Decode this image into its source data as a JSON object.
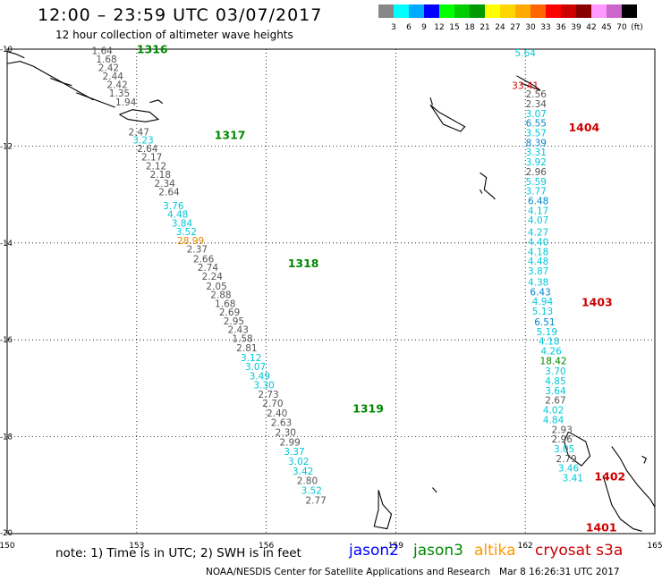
{
  "header": {
    "title": "12:00 – 23:59 UTC 03/07/2017",
    "subtitle": "12 hour collection of altimeter wave heights"
  },
  "legend": {
    "unit_label": "(ft)",
    "bins": [
      {
        "color": "#888888",
        "label": "3"
      },
      {
        "color": "#00ffff",
        "label": "6"
      },
      {
        "color": "#00aaff",
        "label": "9"
      },
      {
        "color": "#0000ff",
        "label": "12"
      },
      {
        "color": "#00ff00",
        "label": "15"
      },
      {
        "color": "#00cc00",
        "label": "18"
      },
      {
        "color": "#009900",
        "label": "21"
      },
      {
        "color": "#ffff00",
        "label": "24"
      },
      {
        "color": "#ffd700",
        "label": "27"
      },
      {
        "color": "#ffaa00",
        "label": "30"
      },
      {
        "color": "#ff6600",
        "label": "33"
      },
      {
        "color": "#ff0000",
        "label": "36"
      },
      {
        "color": "#cc0000",
        "label": "39"
      },
      {
        "color": "#880000",
        "label": "42"
      },
      {
        "color": "#ff99ff",
        "label": "45"
      },
      {
        "color": "#cc66cc",
        "label": "70"
      },
      {
        "color": "#000000",
        "label": ""
      }
    ]
  },
  "map": {
    "lon_range": [
      150,
      165
    ],
    "lat_range": [
      -20,
      -10
    ],
    "lon_ticks": [
      "150",
      "153",
      "156",
      "159",
      "162",
      "165"
    ],
    "lat_ticks": [
      "-10",
      "-12",
      "-14",
      "-16",
      "-18",
      "-20"
    ],
    "colors": {
      "gray": "#555555",
      "cyan": "#00c8d8",
      "blue": "#0088cc",
      "green": "#008800",
      "orange": "#e08800",
      "red": "#cc0000",
      "coast": "#000000"
    },
    "passes": [
      {
        "label": "1316",
        "lon": 153.0,
        "lat": -10.08,
        "color": "green"
      },
      {
        "label": "1317",
        "lon": 154.8,
        "lat": -11.85,
        "color": "green"
      },
      {
        "label": "1318",
        "lon": 156.5,
        "lat": -14.5,
        "color": "green"
      },
      {
        "label": "1319",
        "lon": 158.0,
        "lat": -17.5,
        "color": "green"
      },
      {
        "label": "1404",
        "lon": 163.0,
        "lat": -11.7,
        "color": "red"
      },
      {
        "label": "1403",
        "lon": 163.3,
        "lat": -15.3,
        "color": "red"
      },
      {
        "label": "1402",
        "lon": 163.6,
        "lat": -18.9,
        "color": "red"
      },
      {
        "label": "1401",
        "lon": 163.4,
        "lat": -19.95,
        "color": "red"
      }
    ],
    "tracks": [
      {
        "name": "west",
        "points": [
          {
            "v": "1.64",
            "lon": 152.2,
            "lat": -10.1,
            "c": "gray"
          },
          {
            "v": "1.68",
            "lon": 152.3,
            "lat": -10.28,
            "c": "gray"
          },
          {
            "v": "2.42",
            "lon": 152.35,
            "lat": -10.45,
            "c": "gray"
          },
          {
            "v": "2.44",
            "lon": 152.45,
            "lat": -10.63,
            "c": "gray"
          },
          {
            "v": "2.42",
            "lon": 152.55,
            "lat": -10.8,
            "c": "gray"
          },
          {
            "v": "1.35",
            "lon": 152.6,
            "lat": -10.98,
            "c": "gray"
          },
          {
            "v": "1.94",
            "lon": 152.75,
            "lat": -11.16,
            "c": "gray"
          },
          {
            "v": "2.47",
            "lon": 153.05,
            "lat": -11.78,
            "c": "gray"
          },
          {
            "v": "3.23",
            "lon": 153.15,
            "lat": -11.95,
            "c": "cyan"
          },
          {
            "v": "2.64",
            "lon": 153.25,
            "lat": -12.12,
            "c": "gray"
          },
          {
            "v": "2.17",
            "lon": 153.35,
            "lat": -12.3,
            "c": "gray"
          },
          {
            "v": "2.12",
            "lon": 153.45,
            "lat": -12.48,
            "c": "gray"
          },
          {
            "v": "2.18",
            "lon": 153.55,
            "lat": -12.66,
            "c": "gray"
          },
          {
            "v": "2.34",
            "lon": 153.65,
            "lat": -12.84,
            "c": "gray"
          },
          {
            "v": "2.64",
            "lon": 153.75,
            "lat": -13.02,
            "c": "gray"
          },
          {
            "v": "3.76",
            "lon": 153.85,
            "lat": -13.3,
            "c": "cyan"
          },
          {
            "v": "4.48",
            "lon": 153.95,
            "lat": -13.48,
            "c": "cyan"
          },
          {
            "v": "3.84",
            "lon": 154.05,
            "lat": -13.66,
            "c": "cyan"
          },
          {
            "v": "3.52",
            "lon": 154.15,
            "lat": -13.84,
            "c": "cyan"
          },
          {
            "v": "28.99",
            "lon": 154.25,
            "lat": -14.02,
            "c": "orange"
          },
          {
            "v": "2.37",
            "lon": 154.4,
            "lat": -14.2,
            "c": "gray"
          },
          {
            "v": "2.66",
            "lon": 154.55,
            "lat": -14.4,
            "c": "gray"
          },
          {
            "v": "2.74",
            "lon": 154.65,
            "lat": -14.58,
            "c": "gray"
          },
          {
            "v": "2.24",
            "lon": 154.75,
            "lat": -14.76,
            "c": "gray"
          },
          {
            "v": "2.05",
            "lon": 154.85,
            "lat": -14.96,
            "c": "gray"
          },
          {
            "v": "2.88",
            "lon": 154.95,
            "lat": -15.14,
            "c": "gray"
          },
          {
            "v": "1.68",
            "lon": 155.05,
            "lat": -15.32,
            "c": "gray"
          },
          {
            "v": "2.69",
            "lon": 155.15,
            "lat": -15.5,
            "c": "gray"
          },
          {
            "v": "2.95",
            "lon": 155.25,
            "lat": -15.68,
            "c": "gray"
          },
          {
            "v": "2.43",
            "lon": 155.35,
            "lat": -15.86,
            "c": "gray"
          },
          {
            "v": "1.58",
            "lon": 155.45,
            "lat": -16.04,
            "c": "gray"
          },
          {
            "v": "2.81",
            "lon": 155.55,
            "lat": -16.24,
            "c": "gray"
          },
          {
            "v": "3.12",
            "lon": 155.65,
            "lat": -16.44,
            "c": "cyan"
          },
          {
            "v": "3.07",
            "lon": 155.75,
            "lat": -16.62,
            "c": "cyan"
          },
          {
            "v": "3.49",
            "lon": 155.85,
            "lat": -16.82,
            "c": "cyan"
          },
          {
            "v": "3.30",
            "lon": 155.95,
            "lat": -17.0,
            "c": "cyan"
          },
          {
            "v": "2.73",
            "lon": 156.05,
            "lat": -17.2,
            "c": "gray"
          },
          {
            "v": "2.70",
            "lon": 156.15,
            "lat": -17.38,
            "c": "gray"
          },
          {
            "v": "2.40",
            "lon": 156.25,
            "lat": -17.58,
            "c": "gray"
          },
          {
            "v": "2.63",
            "lon": 156.35,
            "lat": -17.78,
            "c": "gray"
          },
          {
            "v": "2.30",
            "lon": 156.45,
            "lat": -17.98,
            "c": "gray"
          },
          {
            "v": "2.99",
            "lon": 156.55,
            "lat": -18.18,
            "c": "gray"
          },
          {
            "v": "3.37",
            "lon": 156.65,
            "lat": -18.38,
            "c": "cyan"
          },
          {
            "v": "3.02",
            "lon": 156.75,
            "lat": -18.58,
            "c": "cyan"
          },
          {
            "v": "3.42",
            "lon": 156.85,
            "lat": -18.78,
            "c": "cyan"
          },
          {
            "v": "2.80",
            "lon": 156.95,
            "lat": -18.98,
            "c": "gray"
          },
          {
            "v": "3.52",
            "lon": 157.05,
            "lat": -19.18,
            "c": "cyan"
          },
          {
            "v": "2.77",
            "lon": 157.15,
            "lat": -19.38,
            "c": "gray"
          }
        ]
      },
      {
        "name": "east",
        "points": [
          {
            "v": "5.64",
            "lon": 162.0,
            "lat": -10.15,
            "c": "cyan"
          },
          {
            "v": "2.56",
            "lon": 162.25,
            "lat": -11.0,
            "c": "gray"
          },
          {
            "v": "2.34",
            "lon": 162.25,
            "lat": -11.2,
            "c": "gray"
          },
          {
            "v": "3.07",
            "lon": 162.25,
            "lat": -11.4,
            "c": "cyan"
          },
          {
            "v": "6.55",
            "lon": 162.25,
            "lat": -11.6,
            "c": "blue"
          },
          {
            "v": "3.57",
            "lon": 162.25,
            "lat": -11.8,
            "c": "cyan"
          },
          {
            "v": "8.39",
            "lon": 162.25,
            "lat": -12.0,
            "c": "blue"
          },
          {
            "v": "3.31",
            "lon": 162.25,
            "lat": -12.2,
            "c": "cyan"
          },
          {
            "v": "3.92",
            "lon": 162.25,
            "lat": -12.4,
            "c": "cyan"
          },
          {
            "v": "2.96",
            "lon": 162.25,
            "lat": -12.6,
            "c": "gray"
          },
          {
            "v": "5.59",
            "lon": 162.25,
            "lat": -12.8,
            "c": "cyan"
          },
          {
            "v": "3.77",
            "lon": 162.25,
            "lat": -13.0,
            "c": "cyan"
          },
          {
            "v": "6.48",
            "lon": 162.3,
            "lat": -13.2,
            "c": "blue"
          },
          {
            "v": "4.17",
            "lon": 162.3,
            "lat": -13.4,
            "c": "cyan"
          },
          {
            "v": "4.07",
            "lon": 162.3,
            "lat": -13.6,
            "c": "cyan"
          },
          {
            "v": "4.27",
            "lon": 162.3,
            "lat": -13.85,
            "c": "cyan"
          },
          {
            "v": "4.40",
            "lon": 162.3,
            "lat": -14.05,
            "c": "cyan"
          },
          {
            "v": "4.18",
            "lon": 162.3,
            "lat": -14.25,
            "c": "cyan"
          },
          {
            "v": "4.48",
            "lon": 162.3,
            "lat": -14.45,
            "c": "cyan"
          },
          {
            "v": "3.87",
            "lon": 162.3,
            "lat": -14.65,
            "c": "cyan"
          },
          {
            "v": "4.38",
            "lon": 162.3,
            "lat": -14.88,
            "c": "cyan"
          },
          {
            "v": "6.43",
            "lon": 162.35,
            "lat": -15.08,
            "c": "blue"
          },
          {
            "v": "4.94",
            "lon": 162.4,
            "lat": -15.28,
            "c": "cyan"
          },
          {
            "v": "5.13",
            "lon": 162.4,
            "lat": -15.48,
            "c": "cyan"
          },
          {
            "v": "6.51",
            "lon": 162.45,
            "lat": -15.7,
            "c": "blue"
          },
          {
            "v": "5.19",
            "lon": 162.5,
            "lat": -15.9,
            "c": "cyan"
          },
          {
            "v": "4.18",
            "lon": 162.55,
            "lat": -16.1,
            "c": "cyan"
          },
          {
            "v": "4.26",
            "lon": 162.6,
            "lat": -16.3,
            "c": "cyan"
          },
          {
            "v": "18.42",
            "lon": 162.65,
            "lat": -16.5,
            "c": "green"
          },
          {
            "v": "3.70",
            "lon": 162.7,
            "lat": -16.72,
            "c": "cyan"
          },
          {
            "v": "4.85",
            "lon": 162.7,
            "lat": -16.92,
            "c": "cyan"
          },
          {
            "v": "3.64",
            "lon": 162.7,
            "lat": -17.12,
            "c": "cyan"
          },
          {
            "v": "2.67",
            "lon": 162.7,
            "lat": -17.32,
            "c": "gray"
          },
          {
            "v": "4.02",
            "lon": 162.65,
            "lat": -17.52,
            "c": "cyan"
          },
          {
            "v": "4.84",
            "lon": 162.65,
            "lat": -17.72,
            "c": "cyan"
          },
          {
            "v": "2.93",
            "lon": 162.85,
            "lat": -17.92,
            "c": "gray"
          },
          {
            "v": "2.96",
            "lon": 162.85,
            "lat": -18.12,
            "c": "gray"
          },
          {
            "v": "3.05",
            "lon": 162.9,
            "lat": -18.32,
            "c": "cyan"
          },
          {
            "v": "2.79",
            "lon": 162.95,
            "lat": -18.52,
            "c": "gray"
          },
          {
            "v": "3.46",
            "lon": 163.0,
            "lat": -18.72,
            "c": "cyan"
          },
          {
            "v": "3.41",
            "lon": 163.1,
            "lat": -18.92,
            "c": "cyan"
          }
        ]
      }
    ],
    "red_marks": [
      {
        "v": "33.41",
        "lon": 162.0,
        "lat": -10.82,
        "c": "red"
      }
    ]
  },
  "notes": {
    "note_text": "note:  1) Time is in UTC;  2) SWH is in feet"
  },
  "satellites": [
    {
      "name": "jason2",
      "color": "#0000ff"
    },
    {
      "name": "jason3",
      "color": "#008800"
    },
    {
      "name": "altika",
      "color": "#ff9900"
    },
    {
      "name": "cryosat s3a",
      "color": "#cc0000"
    }
  ],
  "footer": {
    "credit": "NOAA/NESDIS Center for Satellite Applications and Research",
    "timestamp": "Mar  8 16:26:31 UTC 2017"
  }
}
